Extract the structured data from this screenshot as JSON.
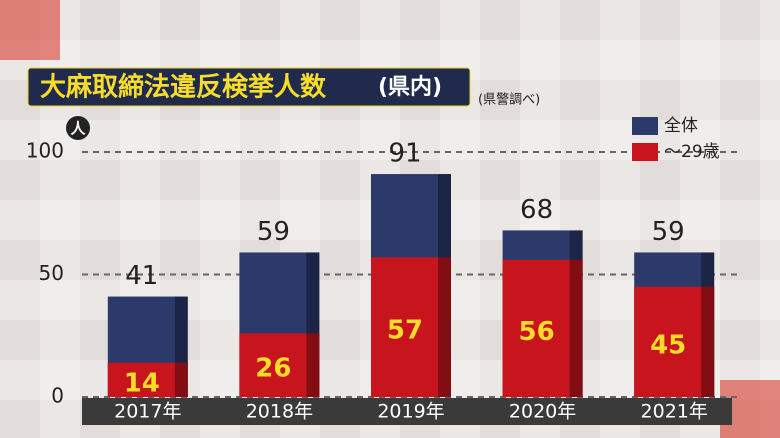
{
  "chart_data": {
    "type": "overlap-bar",
    "title": "大麻取締法違反検挙人数",
    "title_suffix": "(県内)",
    "subtitle": "(県警調べ)",
    "y_unit": "人",
    "categories": [
      "2017年",
      "2018年",
      "2019年",
      "2020年",
      "2021年"
    ],
    "series": [
      {
        "name": "全体",
        "color": "#2b3a6b",
        "values": [
          41,
          59,
          91,
          68,
          59
        ]
      },
      {
        "name": "～29歳",
        "color": "#c8141c",
        "values": [
          14,
          26,
          57,
          56,
          45
        ]
      }
    ],
    "ylim": [
      0,
      100
    ],
    "yticks": [
      0,
      50,
      100
    ],
    "grid": true
  }
}
